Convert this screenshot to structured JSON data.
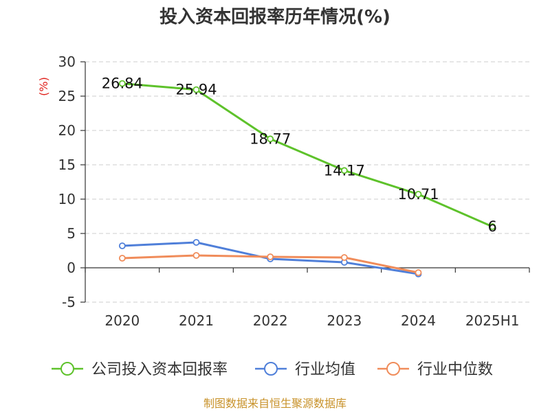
{
  "title": "投入资本回报率历年情况(%)",
  "source": "制图数据来自恒生聚源数据库",
  "colors": {
    "axis": "#333333",
    "grid": "#cccccc",
    "unit": "#e0201a",
    "source": "#c8922a"
  },
  "chart_data": {
    "type": "line",
    "title": "投入资本回报率历年情况(%)",
    "xlabel": "",
    "ylabel": "(%)",
    "categories": [
      "2020",
      "2021",
      "2022",
      "2023",
      "2024",
      "2025H1"
    ],
    "ylim": [
      -5,
      30
    ],
    "yticks": [
      -5,
      0,
      5,
      10,
      15,
      20,
      25,
      30
    ],
    "grid": true,
    "legend_position": "bottom",
    "series": [
      {
        "name": "公司投入资本回报率",
        "color": "#5ec22b",
        "values": [
          26.84,
          25.94,
          18.77,
          14.17,
          10.71,
          6
        ],
        "labels": [
          "26.84",
          "25.94",
          "18.77",
          "14.17",
          "10.71",
          "6"
        ],
        "show_labels": true
      },
      {
        "name": "行业均值",
        "color": "#4f7fd9",
        "values": [
          3.2,
          3.7,
          1.3,
          0.8,
          -0.9,
          null
        ],
        "show_labels": false
      },
      {
        "name": "行业中位数",
        "color": "#f08c5a",
        "values": [
          1.4,
          1.8,
          1.6,
          1.5,
          -0.7,
          null
        ],
        "show_labels": false
      }
    ]
  }
}
